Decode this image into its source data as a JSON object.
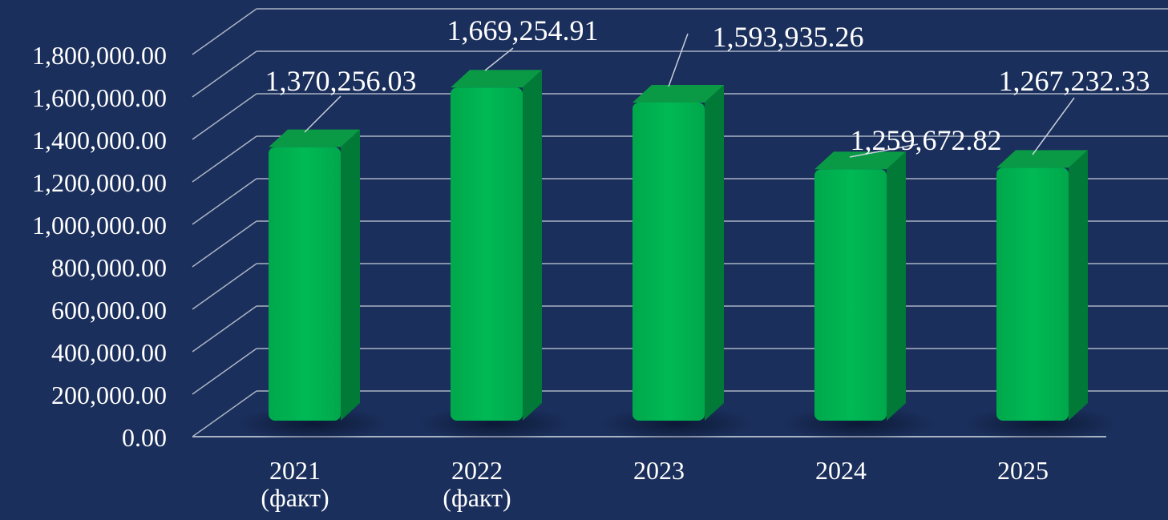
{
  "chart_data": {
    "type": "bar",
    "categories": [
      "2021\n(факт)",
      "2022\n(факт)",
      "2023",
      "2024",
      "2025"
    ],
    "values": [
      1370256.03,
      1669254.91,
      1593935.26,
      1259672.82,
      1267232.33
    ],
    "value_labels": [
      "1,370,256.03",
      "1,669,254.91",
      "1,593,935.26",
      "1,259,672.82",
      "1,267,232.33"
    ],
    "yticks": [
      "0.00",
      "200,000.00",
      "400,000.00",
      "600,000.00",
      "800,000.00",
      "1,000,000.00",
      "1,200,000.00",
      "1,400,000.00",
      "1,600,000.00",
      "1,800,000.00"
    ],
    "ylim": [
      0,
      1800000
    ],
    "title": "",
    "xlabel": "",
    "ylabel": "",
    "grid": true,
    "style": "3d-column",
    "colors": {
      "background": "#1b2f5c",
      "bar_front": "#00b050",
      "bar_side": "#007a36",
      "bar_top": "#0a9a45",
      "grid": "#a9b3c4",
      "text": "#ffffff"
    }
  }
}
